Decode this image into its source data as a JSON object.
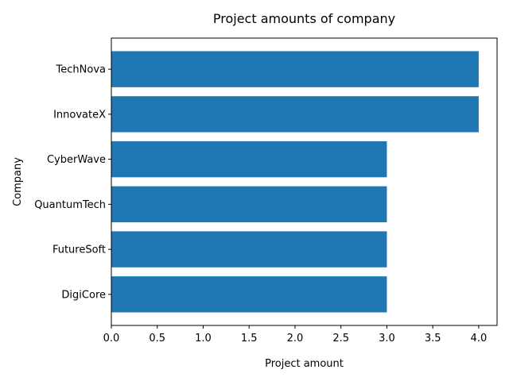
{
  "chart_data": {
    "type": "bar",
    "orientation": "horizontal",
    "title": "Project amounts of company",
    "xlabel": "Project amount",
    "ylabel": "Company",
    "categories": [
      "DigiCore",
      "FutureSoft",
      "QuantumTech",
      "CyberWave",
      "InnovateX",
      "TechNova"
    ],
    "values": [
      3,
      3,
      3,
      3,
      4,
      4
    ],
    "xlim": [
      0,
      4.2
    ],
    "xticks": [
      "0.0",
      "0.5",
      "1.0",
      "1.5",
      "2.0",
      "2.5",
      "3.0",
      "3.5",
      "4.0"
    ],
    "bar_color": "#1f77b4",
    "grid": false,
    "legend": "none"
  }
}
